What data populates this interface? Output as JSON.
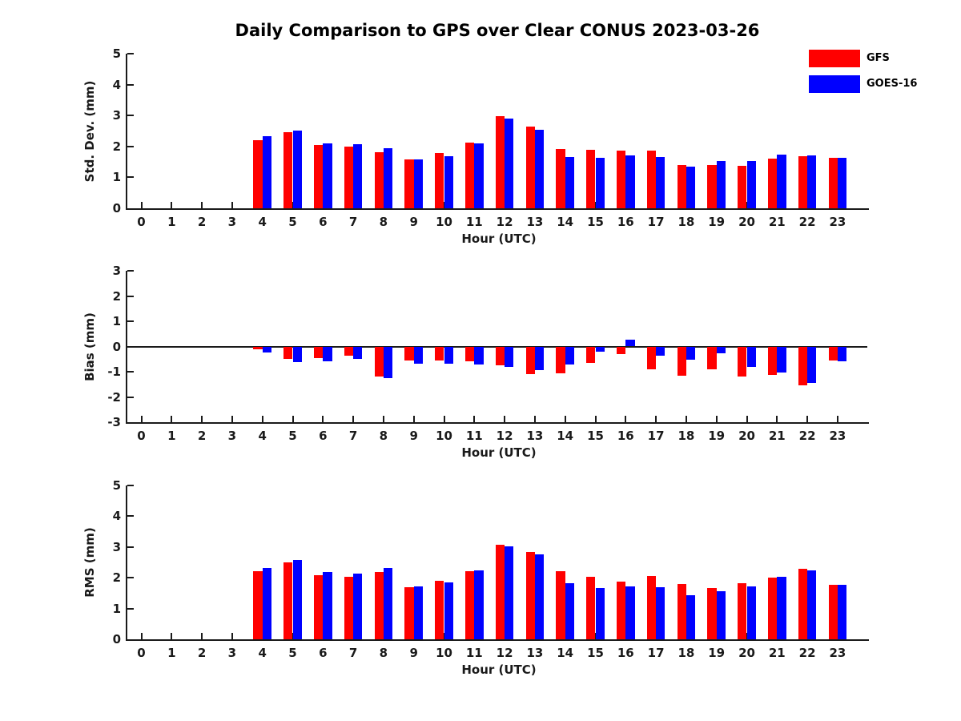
{
  "title": "Daily Comparison to GPS over Clear CONUS 2023-03-26",
  "legend": {
    "items": [
      {
        "label": "GFS",
        "color": "#ff0000"
      },
      {
        "label": "GOES-16",
        "color": "#0000ff"
      }
    ]
  },
  "chart_data": [
    {
      "type": "bar",
      "name": "stddev",
      "ylabel": "Std. Dev. (mm)",
      "xlabel": "Hour (UTC)",
      "ylim": [
        0,
        5
      ],
      "yticks": [
        0,
        1,
        2,
        3,
        4,
        5
      ],
      "zero_line": false,
      "categories": [
        0,
        1,
        2,
        3,
        4,
        5,
        6,
        7,
        8,
        9,
        10,
        11,
        12,
        13,
        14,
        15,
        16,
        17,
        18,
        19,
        20,
        21,
        22,
        23
      ],
      "series": [
        {
          "name": "GFS",
          "color": "#ff0000",
          "values": [
            null,
            null,
            null,
            null,
            2.2,
            2.45,
            2.05,
            2.0,
            1.82,
            1.58,
            1.8,
            2.13,
            2.98,
            2.63,
            1.93,
            1.88,
            1.87,
            1.87,
            1.4,
            1.4,
            1.38,
            1.61,
            1.68,
            1.63
          ]
        },
        {
          "name": "GOES-16",
          "color": "#0000ff",
          "values": [
            null,
            null,
            null,
            null,
            2.32,
            2.52,
            2.1,
            2.07,
            1.95,
            1.58,
            1.69,
            2.09,
            2.91,
            2.55,
            1.67,
            1.64,
            1.7,
            1.67,
            1.36,
            1.52,
            1.53,
            1.74,
            1.72,
            1.63
          ]
        }
      ]
    },
    {
      "type": "bar",
      "name": "bias",
      "ylabel": "Bias (mm)",
      "xlabel": "Hour (UTC)",
      "ylim": [
        -3,
        3
      ],
      "yticks": [
        -3,
        -2,
        -1,
        0,
        1,
        2,
        3
      ],
      "zero_line": true,
      "categories": [
        0,
        1,
        2,
        3,
        4,
        5,
        6,
        7,
        8,
        9,
        10,
        11,
        12,
        13,
        14,
        15,
        16,
        17,
        18,
        19,
        20,
        21,
        22,
        23
      ],
      "series": [
        {
          "name": "GFS",
          "color": "#ff0000",
          "values": [
            null,
            null,
            null,
            null,
            -0.1,
            -0.48,
            -0.45,
            -0.38,
            -1.2,
            -0.55,
            -0.57,
            -0.58,
            -0.76,
            -1.1,
            -1.05,
            -0.65,
            -0.3,
            -0.9,
            -1.15,
            -0.9,
            -1.18,
            -1.13,
            -1.55,
            -0.55
          ]
        },
        {
          "name": "GOES-16",
          "color": "#0000ff",
          "values": [
            null,
            null,
            null,
            null,
            -0.25,
            -0.63,
            -0.6,
            -0.48,
            -1.26,
            -0.69,
            -0.68,
            -0.7,
            -0.8,
            -0.95,
            -0.72,
            -0.2,
            0.28,
            -0.38,
            -0.52,
            -0.27,
            -0.8,
            -1.02,
            -1.45,
            -0.6
          ]
        }
      ]
    },
    {
      "type": "bar",
      "name": "rms",
      "ylabel": "RMS (mm)",
      "xlabel": "Hour (UTC)",
      "ylim": [
        0,
        5
      ],
      "yticks": [
        0,
        1,
        2,
        3,
        4,
        5
      ],
      "zero_line": false,
      "categories": [
        0,
        1,
        2,
        3,
        4,
        5,
        6,
        7,
        8,
        9,
        10,
        11,
        12,
        13,
        14,
        15,
        16,
        17,
        18,
        19,
        20,
        21,
        22,
        23
      ],
      "series": [
        {
          "name": "GFS",
          "color": "#ff0000",
          "values": [
            null,
            null,
            null,
            null,
            2.22,
            2.5,
            2.09,
            2.04,
            2.18,
            1.7,
            1.89,
            2.22,
            3.07,
            2.85,
            2.22,
            2.02,
            1.87,
            2.06,
            1.79,
            1.67,
            1.82,
            2.01,
            2.29,
            1.76
          ]
        },
        {
          "name": "GOES-16",
          "color": "#0000ff",
          "values": [
            null,
            null,
            null,
            null,
            2.33,
            2.58,
            2.2,
            2.14,
            2.32,
            1.72,
            1.84,
            2.23,
            3.01,
            2.75,
            1.83,
            1.66,
            1.72,
            1.7,
            1.44,
            1.55,
            1.72,
            2.04,
            2.24,
            1.76
          ]
        }
      ]
    }
  ]
}
